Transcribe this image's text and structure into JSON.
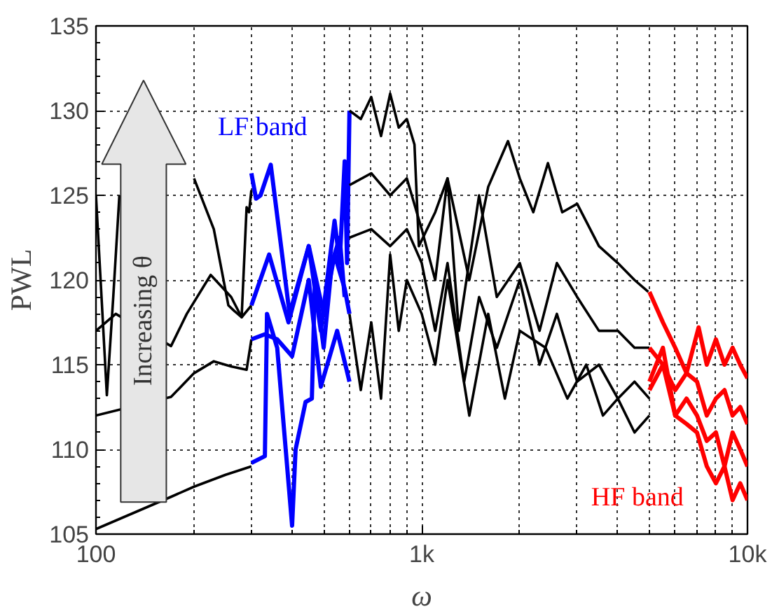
{
  "chart_data": {
    "type": "line",
    "xlabel": "ω",
    "ylabel": "PWL",
    "log": "x",
    "grid": true,
    "line_style": "solid",
    "marker": "none",
    "xlim": [
      100,
      10000
    ],
    "ylim": [
      105,
      135
    ],
    "xticks": [
      {
        "value": 100,
        "label": "100"
      },
      {
        "value": 1000,
        "label": "1k"
      },
      {
        "value": 10000,
        "label": "10k"
      }
    ],
    "yticks": [
      105,
      110,
      115,
      120,
      125,
      130,
      135
    ],
    "annotations": [
      "LF band",
      "HF band",
      "Increasing θ"
    ],
    "series": [
      {
        "color": "#000000",
        "x": [
          100,
          104,
          108,
          113,
          118,
          166,
          200,
          230,
          255,
          265,
          280,
          290,
          295,
          300
        ],
        "values": [
          125,
          119,
          113.2,
          119,
          125,
          null,
          126,
          123,
          118.5,
          118.2,
          117.8,
          124.3,
          124,
          125.3
        ]
      },
      {
        "color": "#000000",
        "x": [
          100,
          115,
          170,
          190,
          225,
          260,
          280,
          300
        ],
        "values": [
          117,
          118,
          116.1,
          118,
          120.3,
          119,
          117.8,
          118.5
        ]
      },
      {
        "color": "#000000",
        "x": [
          100,
          170,
          200,
          230,
          260,
          290,
          300
        ],
        "values": [
          112,
          113.1,
          114.5,
          115.2,
          114.9,
          114.7,
          116.5
        ]
      },
      {
        "color": "#000000",
        "x": [
          100,
          170,
          200,
          250,
          300
        ],
        "values": [
          105.3,
          107.2,
          107.8,
          108.5,
          109
        ]
      },
      {
        "color": "#0000ff",
        "x": [
          300,
          310,
          320,
          344,
          393,
          450,
          490,
          540,
          560,
          580,
          590,
          600
        ],
        "values": [
          126.3,
          124.8,
          125,
          126.8,
          118,
          122,
          117,
          123.5,
          121,
          127,
          121,
          130
        ]
      },
      {
        "color": "#0000ff",
        "x": [
          300,
          340,
          390,
          450,
          500,
          540,
          580,
          600
        ],
        "values": [
          118.5,
          121.5,
          117.5,
          122,
          118,
          121.5,
          119.5,
          118
        ]
      },
      {
        "color": "#0000ff",
        "x": [
          300,
          330,
          360,
          400,
          450,
          490,
          550,
          600
        ],
        "values": [
          116.5,
          116.8,
          116.5,
          115.5,
          120,
          113.7,
          117,
          114
        ]
      },
      {
        "color": "#0000ff",
        "x": [
          300,
          330,
          335,
          360,
          400,
          410,
          440,
          460,
          470,
          500,
          530,
          560,
          580
        ],
        "values": [
          109.2,
          109.6,
          118,
          116,
          105.5,
          110,
          112.8,
          113,
          120,
          116,
          121,
          122.5,
          119
        ]
      },
      {
        "color": "#000000",
        "x": [
          600,
          650,
          700,
          750,
          800,
          850,
          900,
          950,
          980,
          1100,
          1200,
          1400,
          1600,
          1840,
          2000,
          2200,
          2440,
          2700,
          3000,
          3500,
          4000,
          4500,
          4960
        ],
        "values": [
          130,
          129.5,
          130.8,
          128.5,
          131,
          129,
          129.5,
          128,
          122,
          124,
          126,
          120,
          125.5,
          128.2,
          126,
          124,
          126.9,
          124,
          124.5,
          122,
          121,
          120,
          119.3
        ]
      },
      {
        "color": "#000000",
        "x": [
          600,
          700,
          800,
          900,
          1000,
          1100,
          1200,
          1300,
          1500,
          1700,
          2000,
          2300,
          2600,
          3000,
          3500,
          4000,
          4500,
          5000
        ],
        "values": [
          125.6,
          126.3,
          125,
          126,
          123,
          120,
          126,
          117,
          125,
          119,
          121,
          117,
          121,
          119,
          117,
          117,
          116,
          116
        ]
      },
      {
        "color": "#000000",
        "x": [
          600,
          700,
          800,
          900,
          1000,
          1100,
          1200,
          1350,
          1500,
          1700,
          2000,
          2300,
          2600,
          3000,
          3500,
          4000,
          4500,
          5000
        ],
        "values": [
          122.5,
          123,
          122,
          123,
          121,
          117,
          121,
          114,
          119,
          116,
          120,
          115,
          118,
          114,
          115,
          113,
          114,
          113
        ]
      },
      {
        "color": "#000000",
        "x": [
          600,
          650,
          700,
          750,
          800,
          850,
          900,
          1000,
          1100,
          1200,
          1400,
          1600,
          1800,
          2000,
          2400,
          2800,
          3200,
          3600,
          4000,
          4500,
          5000
        ],
        "values": [
          118,
          113.5,
          117.5,
          113,
          121.5,
          117,
          120,
          118,
          115,
          120,
          112,
          118,
          113,
          117,
          116,
          113,
          115,
          112,
          113,
          111,
          112
        ]
      },
      {
        "color": "#ff0000",
        "x": [
          5000,
          5500,
          6000,
          6500,
          7080,
          7500,
          8000,
          8500,
          9000,
          9500,
          10000
        ],
        "values": [
          119.3,
          117.5,
          116,
          114.5,
          117.2,
          115,
          116.5,
          115,
          116,
          115,
          114.2
        ]
      },
      {
        "color": "#ff0000",
        "x": [
          5000,
          5500,
          6000,
          6500,
          7000,
          7500,
          8000,
          8500,
          9000,
          9500,
          10000
        ],
        "values": [
          116,
          115,
          113.5,
          114.5,
          114,
          112,
          113,
          113.5,
          112,
          112.5,
          111.5
        ]
      },
      {
        "color": "#ff0000",
        "x": [
          5000,
          5500,
          6000,
          6500,
          7000,
          7500,
          8000,
          8500,
          9000,
          9500,
          10000
        ],
        "values": [
          114,
          116,
          112,
          113,
          112,
          110.5,
          111,
          109,
          111,
          110,
          109
        ]
      },
      {
        "color": "#ff0000",
        "x": [
          5000,
          5500,
          6000,
          6500,
          7000,
          7500,
          8000,
          8500,
          9000,
          9500,
          10000
        ],
        "values": [
          113.5,
          115,
          112,
          111.5,
          111,
          109,
          108,
          109,
          107,
          108,
          107
        ]
      }
    ]
  }
}
